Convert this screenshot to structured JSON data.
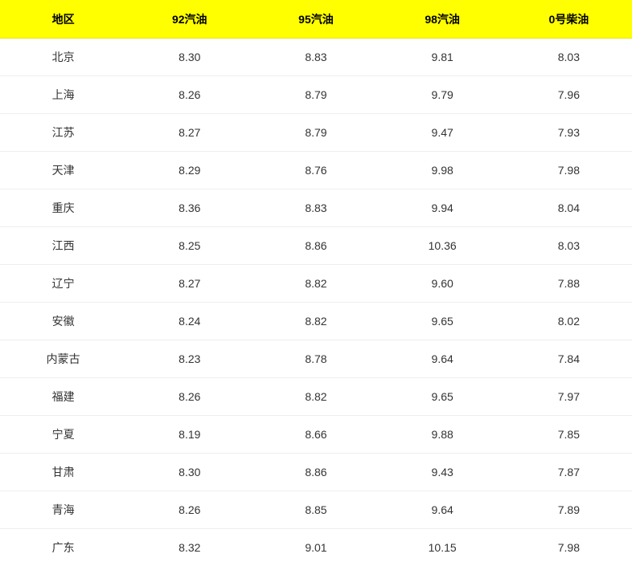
{
  "table": {
    "type": "table",
    "header_bg_color": "#ffff00",
    "header_text_color": "#000000",
    "header_font_weight": "bold",
    "header_fontsize": 14,
    "cell_fontsize": 14,
    "cell_text_color": "#333333",
    "row_border_color": "#eeeeee",
    "background_color": "#ffffff",
    "columns": [
      "地区",
      "92汽油",
      "95汽油",
      "98汽油",
      "0号柴油"
    ],
    "rows": [
      [
        "北京",
        "8.30",
        "8.83",
        "9.81",
        "8.03"
      ],
      [
        "上海",
        "8.26",
        "8.79",
        "9.79",
        "7.96"
      ],
      [
        "江苏",
        "8.27",
        "8.79",
        "9.47",
        "7.93"
      ],
      [
        "天津",
        "8.29",
        "8.76",
        "9.98",
        "7.98"
      ],
      [
        "重庆",
        "8.36",
        "8.83",
        "9.94",
        "8.04"
      ],
      [
        "江西",
        "8.25",
        "8.86",
        "10.36",
        "8.03"
      ],
      [
        "辽宁",
        "8.27",
        "8.82",
        "9.60",
        "7.88"
      ],
      [
        "安徽",
        "8.24",
        "8.82",
        "9.65",
        "8.02"
      ],
      [
        "内蒙古",
        "8.23",
        "8.78",
        "9.64",
        "7.84"
      ],
      [
        "福建",
        "8.26",
        "8.82",
        "9.65",
        "7.97"
      ],
      [
        "宁夏",
        "8.19",
        "8.66",
        "9.88",
        "7.85"
      ],
      [
        "甘肃",
        "8.30",
        "8.86",
        "9.43",
        "7.87"
      ],
      [
        "青海",
        "8.26",
        "8.85",
        "9.64",
        "7.89"
      ],
      [
        "广东",
        "8.32",
        "9.01",
        "10.15",
        "7.98"
      ]
    ]
  }
}
